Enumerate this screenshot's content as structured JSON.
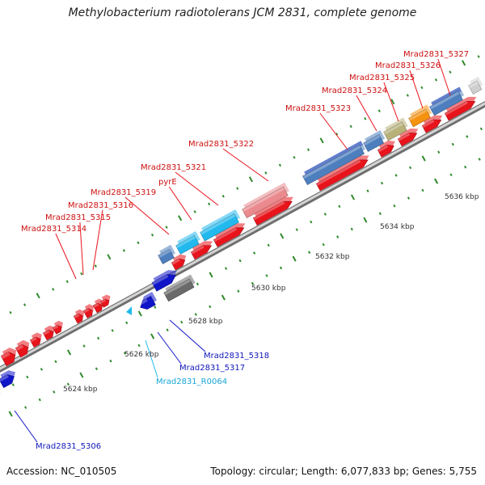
{
  "title": "Methylobacterium radiotolerans JCM 2831, complete genome",
  "footer": {
    "accession": "Accession: NC_010505",
    "summary": "Topology: circular; Length: 6,077,833 bp; Genes: 5,755"
  },
  "colors": {
    "cds": "#e8141c",
    "blue": "#1016c8",
    "steel": "#4d7fbe",
    "cyan": "#22b9ee",
    "pink": "#ea8a8e",
    "olive": "#b8b27a",
    "orange": "#f5920f",
    "gray": "#6a6a6a",
    "ncrna": "#22b9ee",
    "tick": "#2f8a2a",
    "axis": "#8c8c8c"
  },
  "scale_labels": [
    "5624 kbp",
    "5626 kbp",
    "5628 kbp",
    "5630 kbp",
    "5632 kbp",
    "5634 kbp",
    "5636 kbp"
  ],
  "upper_labels": [
    "Mrad2831_5314",
    "Mrad2831_5315",
    "Mrad2831_5316",
    "Mrad2831_5319",
    "pyrE",
    "Mrad2831_5321",
    "Mrad2831_5322",
    "Mrad2831_5323",
    "Mrad2831_5324",
    "Mrad2831_5325",
    "Mrad2831_5326",
    "Mrad2831_5327"
  ],
  "lower_labels": [
    "Mrad2831_5318",
    "Mrad2831_5317",
    "Mrad2831_R0064",
    "Mrad2831_5306"
  ]
}
